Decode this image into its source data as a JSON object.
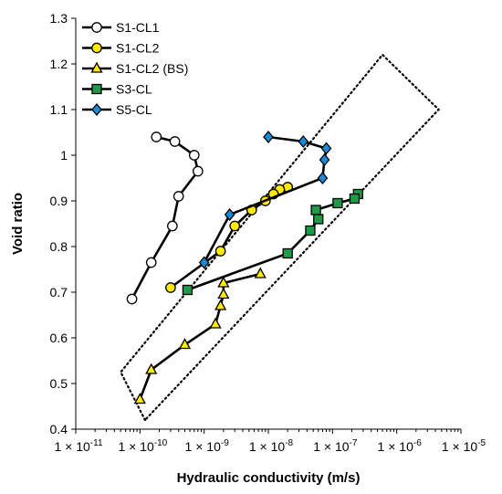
{
  "chart_data": {
    "type": "scatter",
    "title": "",
    "xlabel": "Hydraulic conductivity (m/s)",
    "ylabel": "Void ratio",
    "x_scale": "log",
    "xlim": [
      1e-11,
      1e-05
    ],
    "ylim": [
      0.4,
      1.3
    ],
    "x_ticks": [
      1e-11,
      1e-10,
      1e-09,
      1e-08,
      1e-07,
      1e-06,
      1e-05
    ],
    "x_tick_labels": [
      {
        "base": "1 × 10",
        "exp": "-11"
      },
      {
        "base": "1 × 10",
        "exp": "-10"
      },
      {
        "base": "1 × 10",
        "exp": "-9"
      },
      {
        "base": "1 × 10",
        "exp": "-8"
      },
      {
        "base": "1 × 10",
        "exp": "-7"
      },
      {
        "base": "1 × 10",
        "exp": "-6"
      },
      {
        "base": "1 × 10",
        "exp": "-5"
      }
    ],
    "y_ticks": [
      0.4,
      0.5,
      0.6,
      0.7,
      0.8,
      0.9,
      1,
      1.1,
      1.2,
      1.3
    ],
    "y_tick_labels": [
      "0.4",
      "0.5",
      "0.6",
      "0.7",
      "0.8",
      "0.9",
      "1",
      "1.1",
      "1.2",
      "1.3"
    ],
    "grid": false,
    "legend_position": "top-left",
    "series": [
      {
        "name": "S1-CL1",
        "marker": "circle",
        "color": "#ffffff",
        "stroke": "#000000",
        "points": [
          {
            "x": 1.8e-10,
            "y": 1.04
          },
          {
            "x": 3.5e-10,
            "y": 1.03
          },
          {
            "x": 7e-10,
            "y": 1.0
          },
          {
            "x": 8e-10,
            "y": 0.965
          },
          {
            "x": 4e-10,
            "y": 0.91
          },
          {
            "x": 3.2e-10,
            "y": 0.845
          },
          {
            "x": 1.5e-10,
            "y": 0.765
          },
          {
            "x": 7.5e-11,
            "y": 0.685
          }
        ]
      },
      {
        "name": "S1-CL2",
        "marker": "circle",
        "color": "#ffeb00",
        "stroke": "#000000",
        "points": [
          {
            "x": 2e-08,
            "y": 0.93
          },
          {
            "x": 1.5e-08,
            "y": 0.925
          },
          {
            "x": 1.2e-08,
            "y": 0.915
          },
          {
            "x": 9e-09,
            "y": 0.9
          },
          {
            "x": 5.5e-09,
            "y": 0.88
          },
          {
            "x": 3e-09,
            "y": 0.845
          },
          {
            "x": 1.8e-09,
            "y": 0.79
          },
          {
            "x": 3e-10,
            "y": 0.71
          }
        ]
      },
      {
        "name": "S1-CL2 (BS)",
        "marker": "triangle",
        "color": "#ffeb00",
        "stroke": "#000000",
        "points": [
          {
            "x": 7.5e-09,
            "y": 0.74
          },
          {
            "x": 2e-09,
            "y": 0.72
          },
          {
            "x": 2e-09,
            "y": 0.695
          },
          {
            "x": 1.8e-09,
            "y": 0.67
          },
          {
            "x": 1.5e-09,
            "y": 0.63
          },
          {
            "x": 5e-10,
            "y": 0.585
          },
          {
            "x": 1.5e-10,
            "y": 0.53
          },
          {
            "x": 1e-10,
            "y": 0.465
          }
        ]
      },
      {
        "name": "S3-CL",
        "marker": "square",
        "color": "#1f9a48",
        "stroke": "#000000",
        "points": [
          {
            "x": 2.5e-07,
            "y": 0.915
          },
          {
            "x": 2.2e-07,
            "y": 0.905
          },
          {
            "x": 1.2e-07,
            "y": 0.895
          },
          {
            "x": 5.5e-08,
            "y": 0.88
          },
          {
            "x": 6e-08,
            "y": 0.86
          },
          {
            "x": 4.5e-08,
            "y": 0.835
          },
          {
            "x": 2e-08,
            "y": 0.785
          },
          {
            "x": 5.5e-10,
            "y": 0.705
          }
        ]
      },
      {
        "name": "S5-CL",
        "marker": "diamond",
        "color": "#1a8ad6",
        "stroke": "#000000",
        "points": [
          {
            "x": 1e-08,
            "y": 1.04
          },
          {
            "x": 3.5e-08,
            "y": 1.03
          },
          {
            "x": 8e-08,
            "y": 1.015
          },
          {
            "x": 7.5e-08,
            "y": 0.99
          },
          {
            "x": 7e-08,
            "y": 0.95
          },
          {
            "x": 2.5e-09,
            "y": 0.87
          },
          {
            "x": 1e-09,
            "y": 0.765
          }
        ]
      }
    ],
    "envelope": {
      "style": "dotted",
      "points": [
        {
          "x": 1.2e-10,
          "y": 0.42
        },
        {
          "x": 5e-11,
          "y": 0.525
        },
        {
          "x": 6e-07,
          "y": 1.22
        },
        {
          "x": 4.5e-06,
          "y": 1.1
        }
      ]
    }
  }
}
